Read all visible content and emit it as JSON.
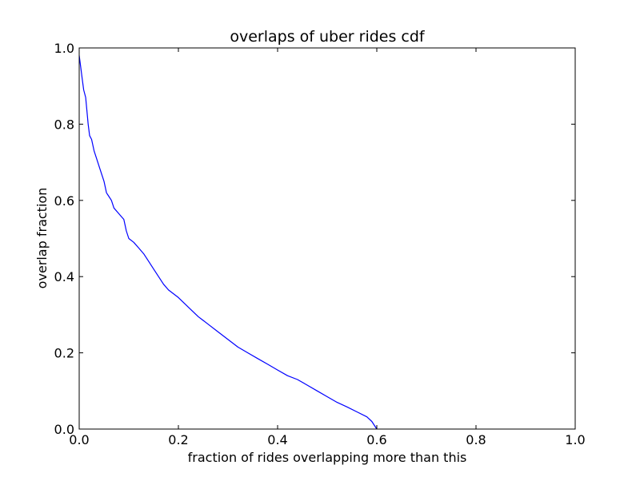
{
  "chart_data": {
    "type": "line",
    "title": "overlaps of uber rides cdf",
    "xlabel": "fraction of rides overlapping more than this",
    "ylabel": "overlap fraction",
    "xlim": [
      0.0,
      1.0
    ],
    "ylim": [
      0.0,
      1.0
    ],
    "xticks": [
      "0.0",
      "0.2",
      "0.4",
      "0.6",
      "0.8",
      "1.0"
    ],
    "yticks": [
      "0.0",
      "0.2",
      "0.4",
      "0.6",
      "0.8",
      "1.0"
    ],
    "grid": false,
    "legend": "none",
    "series": [
      {
        "color": "#0000ff",
        "x": [
          0.0,
          0.003,
          0.006,
          0.009,
          0.013,
          0.018,
          0.021,
          0.025,
          0.03,
          0.035,
          0.04,
          0.045,
          0.05,
          0.055,
          0.06,
          0.065,
          0.07,
          0.08,
          0.09,
          0.095,
          0.1,
          0.11,
          0.12,
          0.13,
          0.14,
          0.15,
          0.16,
          0.17,
          0.18,
          0.2,
          0.22,
          0.24,
          0.26,
          0.28,
          0.3,
          0.32,
          0.34,
          0.36,
          0.38,
          0.4,
          0.42,
          0.44,
          0.46,
          0.48,
          0.5,
          0.52,
          0.54,
          0.56,
          0.58,
          0.59,
          0.6
        ],
        "y": [
          0.98,
          0.95,
          0.92,
          0.89,
          0.87,
          0.8,
          0.77,
          0.76,
          0.73,
          0.71,
          0.69,
          0.67,
          0.65,
          0.62,
          0.61,
          0.6,
          0.58,
          0.565,
          0.55,
          0.52,
          0.5,
          0.49,
          0.475,
          0.46,
          0.44,
          0.42,
          0.4,
          0.38,
          0.365,
          0.345,
          0.32,
          0.295,
          0.275,
          0.255,
          0.235,
          0.215,
          0.2,
          0.185,
          0.17,
          0.155,
          0.14,
          0.13,
          0.115,
          0.1,
          0.085,
          0.07,
          0.058,
          0.045,
          0.032,
          0.02,
          0.0
        ]
      }
    ]
  }
}
